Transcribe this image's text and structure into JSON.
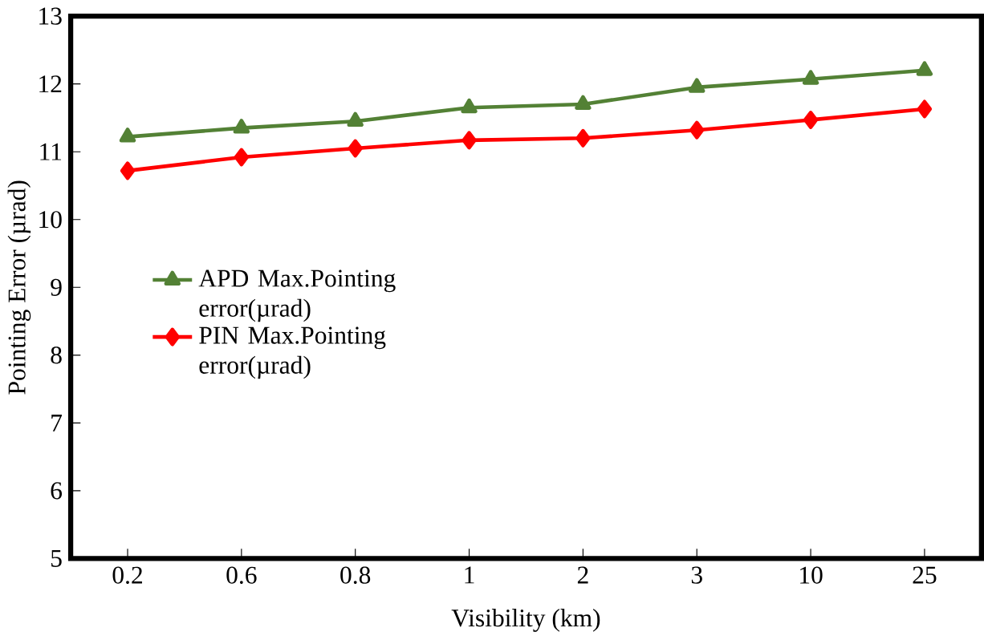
{
  "chart_data": {
    "type": "line",
    "xlabel": "Visibility (km)",
    "ylabel": "Pointing Error (µrad)",
    "categories": [
      "0.2",
      "0.6",
      "0.8",
      "1",
      "2",
      "3",
      "10",
      "25"
    ],
    "series": [
      {
        "name": "APD Max.Pointing error(µrad)",
        "color": "#538135",
        "marker": "triangle",
        "values": [
          11.22,
          11.35,
          11.45,
          11.65,
          11.7,
          11.95,
          12.07,
          12.2
        ]
      },
      {
        "name": "PIN Max.Pointing error(µrad)",
        "color": "#ff0000",
        "marker": "diamond",
        "values": [
          10.72,
          10.92,
          11.05,
          11.17,
          11.2,
          11.32,
          11.47,
          11.63
        ]
      }
    ],
    "ylim": [
      5,
      13
    ],
    "yticks": [
      5,
      6,
      7,
      8,
      9,
      10,
      11,
      12,
      13
    ],
    "legend": "left",
    "grid": false
  }
}
